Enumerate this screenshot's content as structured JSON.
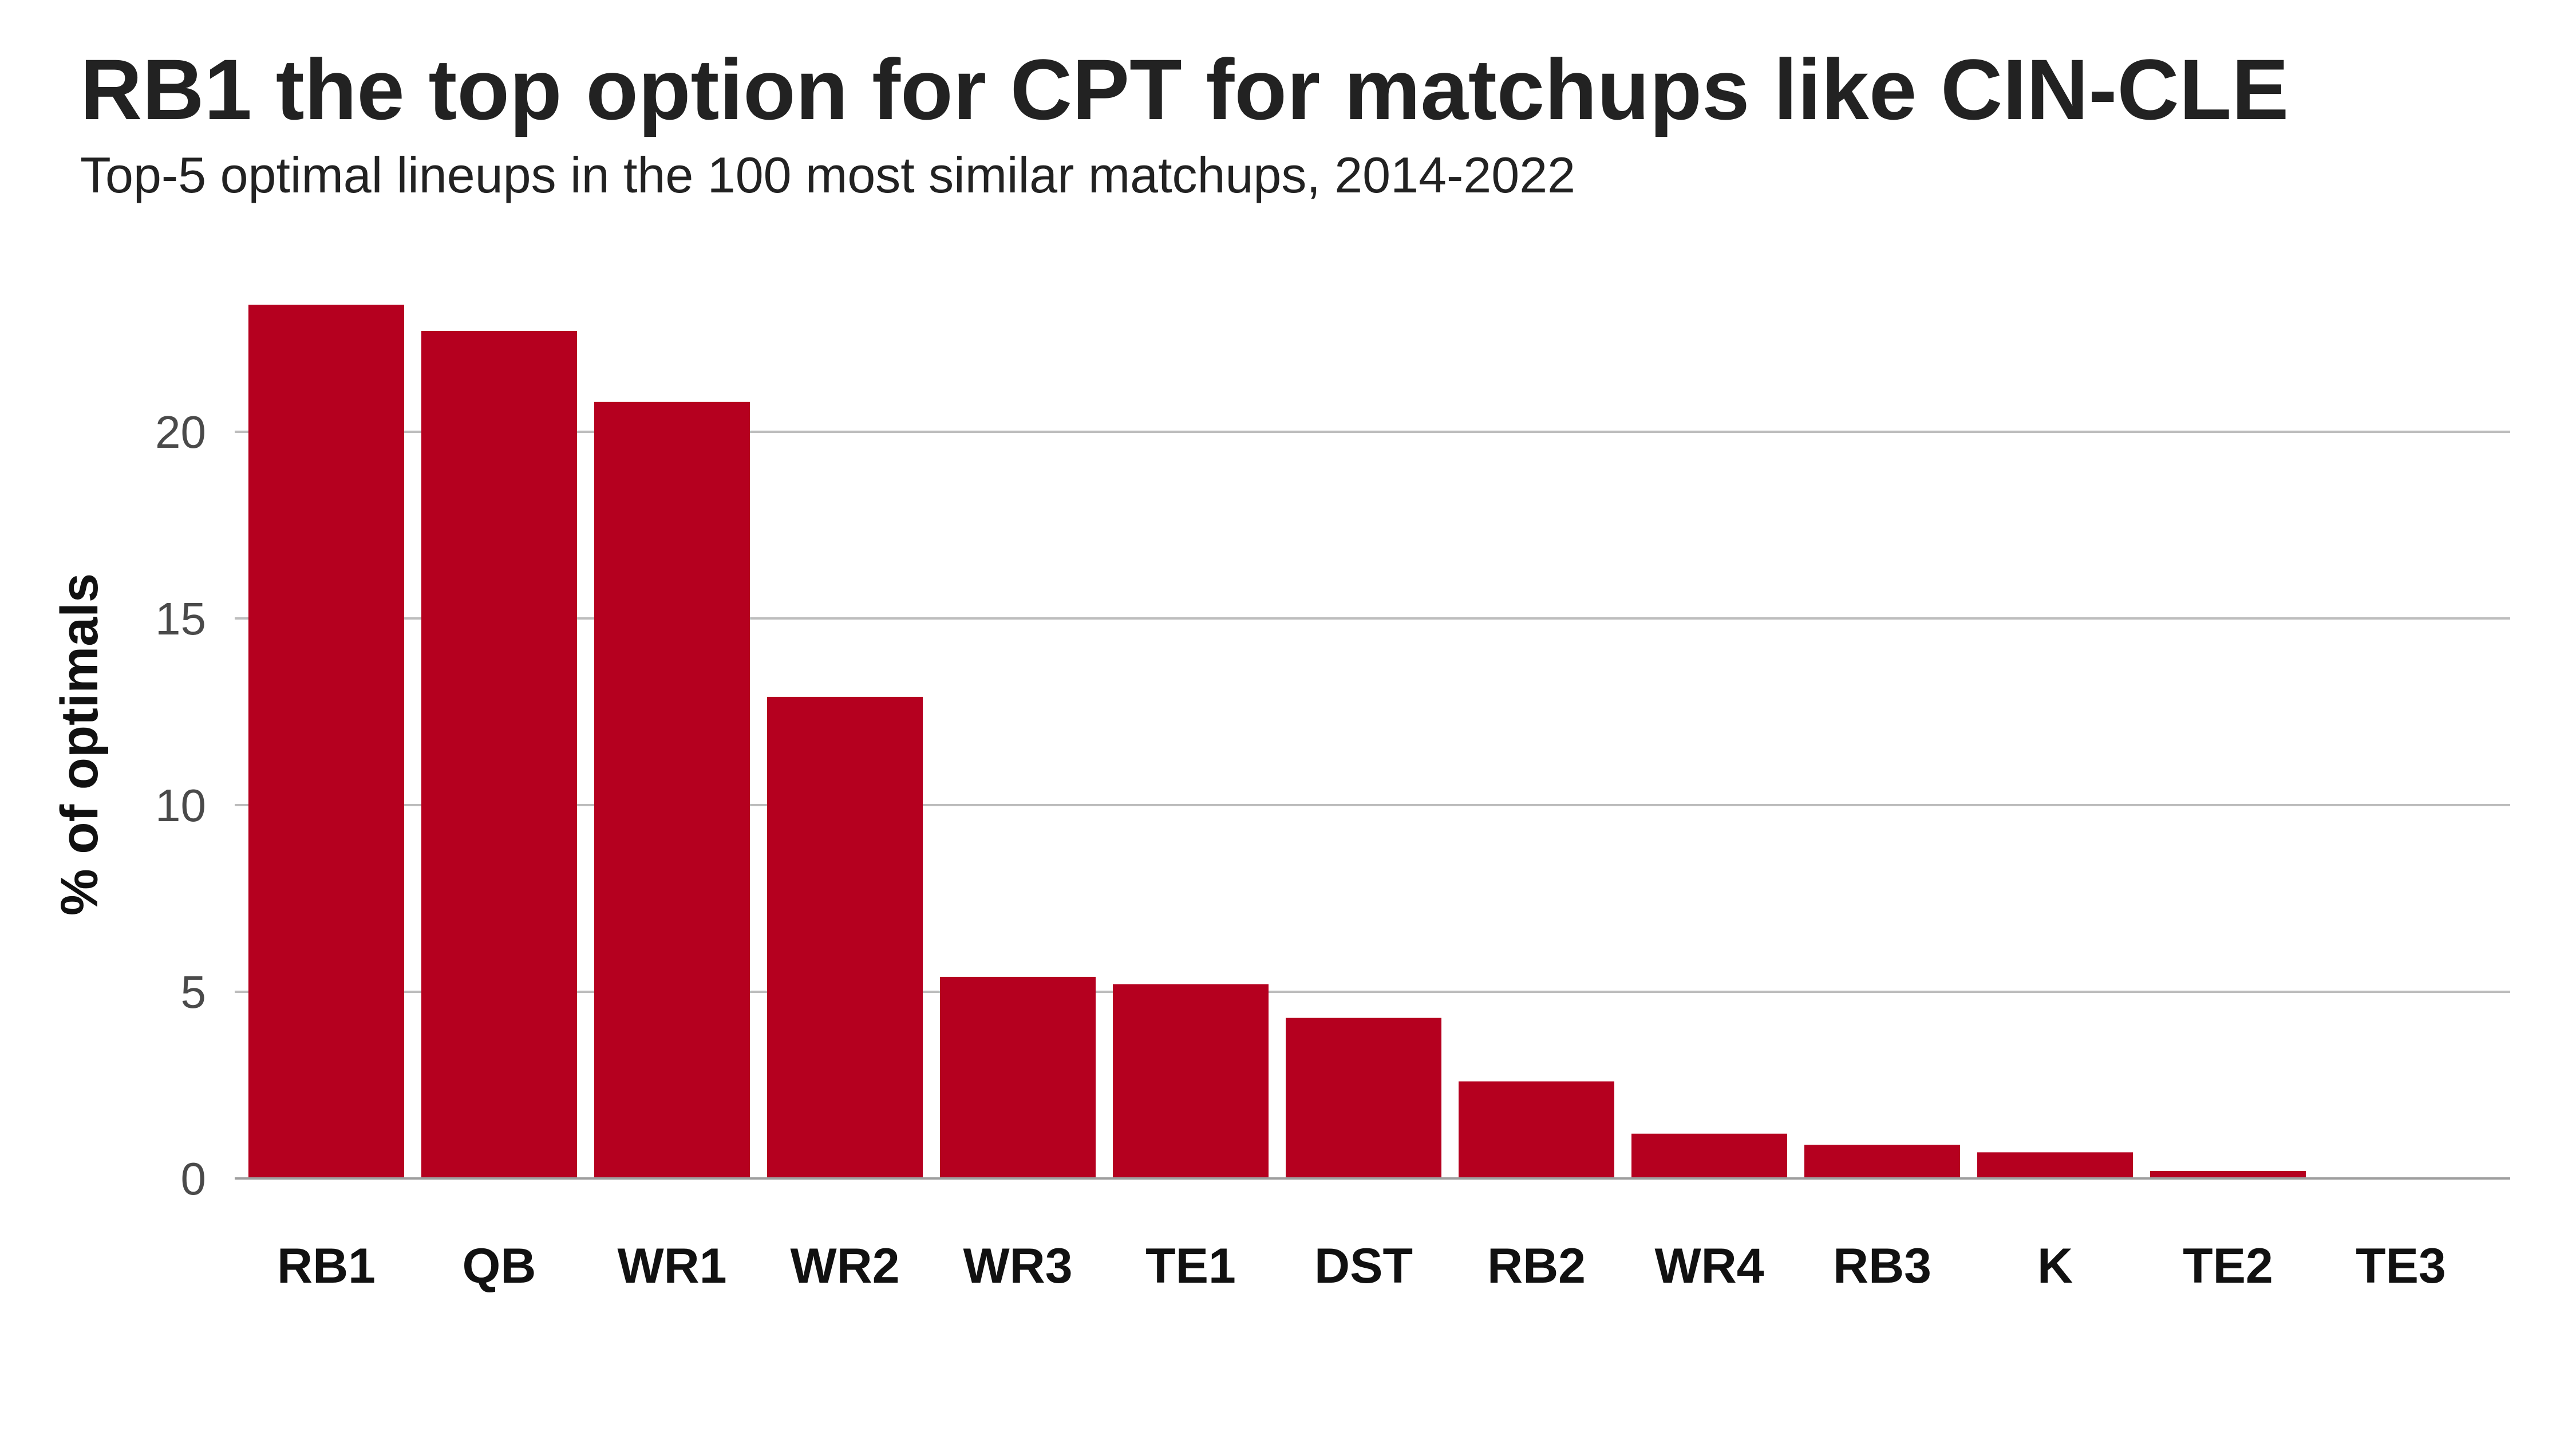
{
  "chart_data": {
    "type": "bar",
    "title": "RB1 the top option for CPT for matchups like CIN-CLE",
    "subtitle": "Top-5 optimal lineups in the 100 most similar matchups, 2014-2022",
    "xlabel": "",
    "ylabel": "% of optimals",
    "categories": [
      "RB1",
      "QB",
      "WR1",
      "WR2",
      "WR3",
      "TE1",
      "DST",
      "RB2",
      "WR4",
      "RB3",
      "K",
      "TE2",
      "TE3"
    ],
    "values": [
      23.4,
      22.7,
      20.8,
      12.9,
      5.4,
      5.2,
      4.3,
      2.6,
      1.2,
      0.9,
      0.7,
      0.2,
      0.0
    ],
    "yticks": [
      0,
      5,
      10,
      15,
      20
    ],
    "ylim": [
      0,
      24
    ],
    "grid": "horizontal",
    "colors": {
      "bar": "#b5001f",
      "grid": "#bdbdbd",
      "axis": "#9e9e9e"
    }
  }
}
